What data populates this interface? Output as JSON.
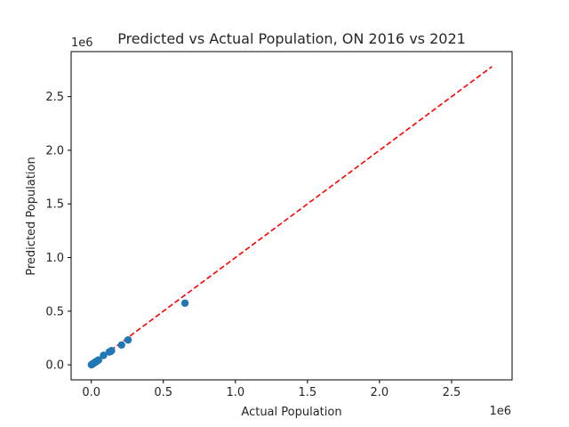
{
  "chart_data": {
    "type": "scatter",
    "title": "Predicted vs Actual Population, ON 2016 vs 2021",
    "xlabel": "Actual Population",
    "ylabel": "Predicted Population",
    "x_offset_label": "1e6",
    "y_offset_label": "1e6",
    "xlim": [
      -140000,
      2920000
    ],
    "ylim": [
      -140000,
      2920000
    ],
    "x_ticks": [
      0,
      0.5,
      1.0,
      1.5,
      2.0,
      2.5
    ],
    "x_tick_labels": [
      "0.0",
      "0.5",
      "1.0",
      "1.5",
      "2.0",
      "2.5"
    ],
    "y_ticks": [
      0,
      0.5,
      1.0,
      1.5,
      2.0,
      2.5
    ],
    "y_tick_labels": [
      "0.0",
      "0.5",
      "1.0",
      "1.5",
      "2.0",
      "2.5"
    ],
    "grid": false,
    "point_color": "#1f77b4",
    "line_color": "#ff0000",
    "reference_line": {
      "style": "dashed",
      "from": [
        0,
        0
      ],
      "to": [
        2780000,
        2780000
      ]
    },
    "points": [
      {
        "x": 1000,
        "y": 1000
      },
      {
        "x": 3000,
        "y": 2500
      },
      {
        "x": 5000,
        "y": 4500
      },
      {
        "x": 8000,
        "y": 7000
      },
      {
        "x": 12000,
        "y": 11000
      },
      {
        "x": 15000,
        "y": 13000
      },
      {
        "x": 20000,
        "y": 17000
      },
      {
        "x": 25000,
        "y": 22000
      },
      {
        "x": 30000,
        "y": 27000
      },
      {
        "x": 35000,
        "y": 31000
      },
      {
        "x": 40000,
        "y": 36000
      },
      {
        "x": 45000,
        "y": 40000
      },
      {
        "x": 50000,
        "y": 45000
      },
      {
        "x": 85000,
        "y": 88000
      },
      {
        "x": 125000,
        "y": 120000
      },
      {
        "x": 135000,
        "y": 125000
      },
      {
        "x": 140000,
        "y": 132000
      },
      {
        "x": 210000,
        "y": 185000
      },
      {
        "x": 255000,
        "y": 232000
      },
      {
        "x": 650000,
        "y": 575000
      }
    ]
  }
}
